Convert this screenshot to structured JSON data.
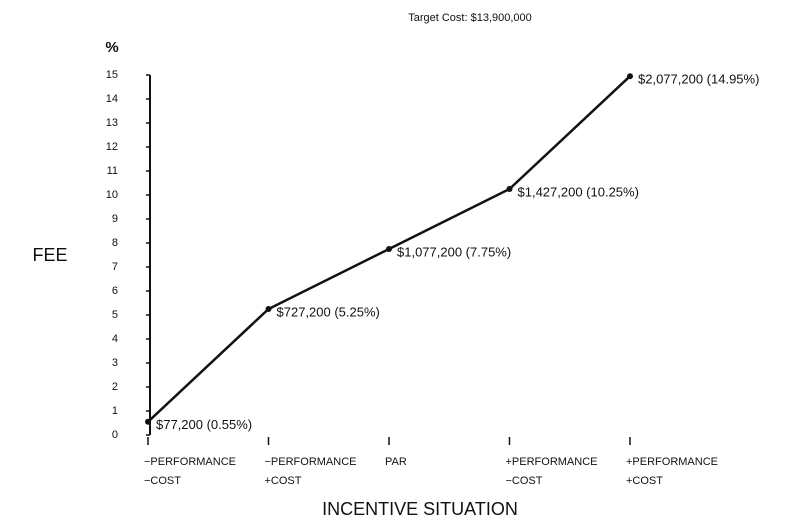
{
  "chart_data": {
    "type": "line",
    "title": "Target Cost: $13,900,000",
    "y_label": "%",
    "y_title": "FEE",
    "x_label": "INCENTIVE SITUATION",
    "categories": [
      [
        "−PERFORMANCE",
        "−COST"
      ],
      [
        "−PERFORMANCE",
        "+COST"
      ],
      [
        "PAR"
      ],
      [
        "+PERFORMANCE",
        "−COST"
      ],
      [
        "+PERFORMANCE",
        "+COST"
      ]
    ],
    "values": [
      0.55,
      5.25,
      7.75,
      10.25,
      14.95
    ],
    "value_labels": [
      "$77,200 (0.55%)",
      "$727,200 (5.25%)",
      "$1,077,200 (7.75%)",
      "$1,427,200 (10.25%)",
      "$2,077,200 (14.95%)"
    ],
    "color": "#111111",
    "ylim": [
      0,
      15
    ],
    "yticks": [
      0,
      1,
      2,
      3,
      4,
      5,
      6,
      7,
      8,
      9,
      10,
      11,
      12,
      13,
      14,
      15
    ]
  }
}
